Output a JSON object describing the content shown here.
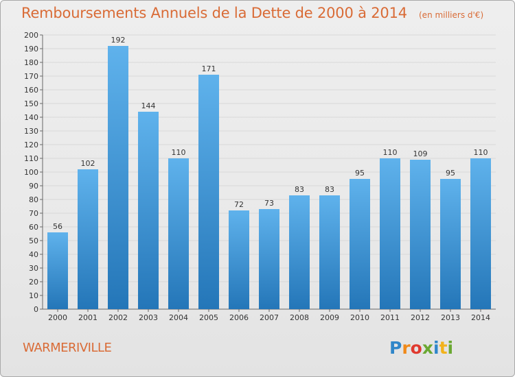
{
  "title": "Remboursements Annuels de la Dette de 2000 à 2014",
  "subtitle": "(en milliers d'€)",
  "town": "WARMERIVILLE",
  "logo_text": "Proxiti",
  "colors": {
    "title": "#d96b36",
    "bar_top": "#5fb2ec",
    "bar_bottom": "#2476b8",
    "grid": "#d8d8d8"
  },
  "chart_data": {
    "type": "bar",
    "title": "Remboursements Annuels de la Dette de 2000 à 2014",
    "subtitle": "(en milliers d'€)",
    "xlabel": "",
    "ylabel": "",
    "categories": [
      "2000",
      "2001",
      "2002",
      "2003",
      "2004",
      "2005",
      "2006",
      "2007",
      "2008",
      "2009",
      "2010",
      "2011",
      "2012",
      "2013",
      "2014"
    ],
    "values": [
      56,
      102,
      192,
      144,
      110,
      171,
      72,
      73,
      83,
      83,
      95,
      110,
      109,
      95,
      110
    ],
    "ylim": [
      0,
      200
    ],
    "ytick_step": 10,
    "grid": true,
    "data_labels": true
  }
}
